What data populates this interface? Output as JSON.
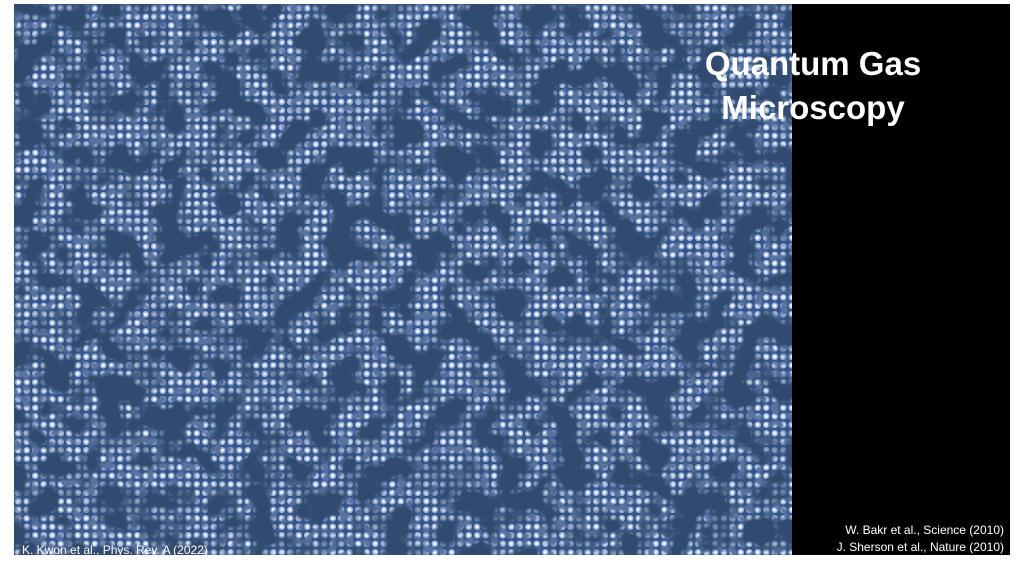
{
  "title_lines": [
    "Quantum Gas",
    "Microscopy"
  ],
  "image_credit": "K. Kwon et al., Phys. Rev. A (2022)",
  "references": [
    "W. Bakr et al., Science (2010)",
    "J. Sherson et al., Nature (2010)"
  ]
}
